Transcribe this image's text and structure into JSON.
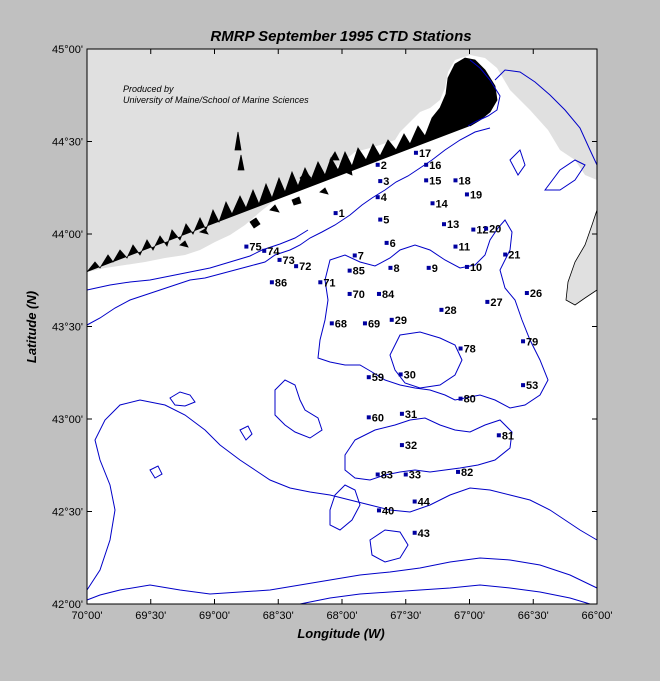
{
  "title": "RMRP  September 1995  CTD Stations",
  "credit": {
    "line1": "Produced by",
    "line2": "University of Maine/School of Marine Sciences"
  },
  "axes": {
    "xlabel": "Longitude (W)",
    "ylabel": "Latitude (N)",
    "xticks": [
      "70°00'",
      "69°30'",
      "69°00'",
      "68°30'",
      "68°00'",
      "67°30'",
      "67°00'",
      "66°30'",
      "66°00'"
    ],
    "yticks": [
      "45°00'",
      "44°30'",
      "44°00'",
      "43°30'",
      "43°00'",
      "42°30'",
      "42°00'"
    ],
    "lon_range": [
      -70.0,
      -66.0
    ],
    "lat_range": [
      42.0,
      45.0
    ]
  },
  "colors": {
    "land": "#e0e0e0",
    "sea": "#ffffff",
    "contour": "#0000c8",
    "station": "#0000a0",
    "background": "#c0c0c0"
  },
  "stations": [
    {
      "id": "1",
      "lon": -68.05,
      "lat": 44.113
    },
    {
      "id": "2",
      "lon": -67.72,
      "lat": 44.374
    },
    {
      "id": "3",
      "lon": -67.7,
      "lat": 44.286
    },
    {
      "id": "4",
      "lon": -67.72,
      "lat": 44.199
    },
    {
      "id": "5",
      "lon": -67.7,
      "lat": 44.078
    },
    {
      "id": "6",
      "lon": -67.65,
      "lat": 43.952
    },
    {
      "id": "7",
      "lon": -67.9,
      "lat": 43.884
    },
    {
      "id": "8",
      "lon": -67.62,
      "lat": 43.817
    },
    {
      "id": "9",
      "lon": -67.32,
      "lat": 43.817
    },
    {
      "id": "10",
      "lon": -67.02,
      "lat": 43.822
    },
    {
      "id": "11",
      "lon": -67.11,
      "lat": 43.932
    },
    {
      "id": "12",
      "lon": -66.97,
      "lat": 44.024
    },
    {
      "id": "13",
      "lon": -67.2,
      "lat": 44.053
    },
    {
      "id": "14",
      "lon": -67.29,
      "lat": 44.166
    },
    {
      "id": "15",
      "lon": -67.34,
      "lat": 44.29
    },
    {
      "id": "16",
      "lon": -67.34,
      "lat": 44.374
    },
    {
      "id": "17",
      "lon": -67.42,
      "lat": 44.439
    },
    {
      "id": "18",
      "lon": -67.11,
      "lat": 44.29
    },
    {
      "id": "19",
      "lon": -67.02,
      "lat": 44.214
    },
    {
      "id": "20",
      "lon": -66.87,
      "lat": 44.029
    },
    {
      "id": "21",
      "lon": -66.72,
      "lat": 43.889
    },
    {
      "id": "26",
      "lon": -66.55,
      "lat": 43.681
    },
    {
      "id": "27",
      "lon": -66.86,
      "lat": 43.633
    },
    {
      "id": "28",
      "lon": -67.22,
      "lat": 43.59
    },
    {
      "id": "29",
      "lon": -67.61,
      "lat": 43.536
    },
    {
      "id": "30",
      "lon": -67.54,
      "lat": 43.241
    },
    {
      "id": "31",
      "lon": -67.53,
      "lat": 43.028
    },
    {
      "id": "32",
      "lon": -67.53,
      "lat": 42.859
    },
    {
      "id": "33",
      "lon": -67.5,
      "lat": 42.7
    },
    {
      "id": "40",
      "lon": -67.71,
      "lat": 42.506
    },
    {
      "id": "43",
      "lon": -67.43,
      "lat": 42.385
    },
    {
      "id": "44",
      "lon": -67.43,
      "lat": 42.554
    },
    {
      "id": "53",
      "lon": -66.58,
      "lat": 43.183
    },
    {
      "id": "59",
      "lon": -67.79,
      "lat": 43.226
    },
    {
      "id": "60",
      "lon": -67.79,
      "lat": 43.009
    },
    {
      "id": "68",
      "lon": -68.08,
      "lat": 43.517
    },
    {
      "id": "69",
      "lon": -67.82,
      "lat": 43.517
    },
    {
      "id": "70",
      "lon": -67.94,
      "lat": 43.676
    },
    {
      "id": "71",
      "lon": -68.17,
      "lat": 43.739
    },
    {
      "id": "72",
      "lon": -68.36,
      "lat": 43.826
    },
    {
      "id": "73",
      "lon": -68.49,
      "lat": 43.86
    },
    {
      "id": "74",
      "lon": -68.61,
      "lat": 43.909
    },
    {
      "id": "75",
      "lon": -68.75,
      "lat": 43.932
    },
    {
      "id": "78",
      "lon": -67.07,
      "lat": 43.381
    },
    {
      "id": "79",
      "lon": -66.58,
      "lat": 43.42
    },
    {
      "id": "80",
      "lon": -67.07,
      "lat": 43.11
    },
    {
      "id": "81",
      "lon": -66.77,
      "lat": 42.912
    },
    {
      "id": "82",
      "lon": -67.09,
      "lat": 42.714
    },
    {
      "id": "83",
      "lon": -67.72,
      "lat": 42.7
    },
    {
      "id": "84",
      "lon": -67.71,
      "lat": 43.676
    },
    {
      "id": "85",
      "lon": -67.94,
      "lat": 43.802
    },
    {
      "id": "86",
      "lon": -68.55,
      "lat": 43.739
    }
  ]
}
